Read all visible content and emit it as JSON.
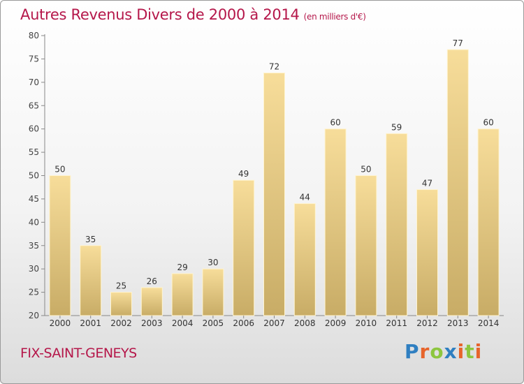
{
  "header": {
    "title": "Autres Revenus Divers de 2000 à 2014",
    "subtitle": "(en milliers d'€)"
  },
  "footer": {
    "commune": "FIX-SAINT-GENEYS",
    "logo_text": "Proxiti",
    "logo_letters": [
      {
        "char": "P",
        "color": "#2f7fc1"
      },
      {
        "char": "r",
        "color": "#e7642b"
      },
      {
        "char": "o",
        "color": "#8dc63f"
      },
      {
        "char": "x",
        "color": "#2f7fc1"
      },
      {
        "char": "i",
        "color": "#e7642b"
      },
      {
        "char": "t",
        "color": "#8dc63f"
      },
      {
        "char": "i",
        "color": "#e7642b"
      }
    ]
  },
  "chart_data": {
    "type": "bar",
    "title": "Autres Revenus Divers de 2000 à 2014",
    "subtitle": "(en milliers d'€)",
    "categories": [
      "2000",
      "2001",
      "2002",
      "2003",
      "2004",
      "2005",
      "2006",
      "2007",
      "2008",
      "2009",
      "2010",
      "2011",
      "2012",
      "2013",
      "2014"
    ],
    "values": [
      50,
      35,
      25,
      26,
      29,
      30,
      49,
      72,
      44,
      60,
      50,
      59,
      47,
      77,
      60
    ],
    "ylim": [
      20,
      80
    ],
    "yticks": [
      20,
      25,
      30,
      35,
      40,
      45,
      50,
      55,
      60,
      65,
      70,
      75,
      80
    ],
    "grid": false,
    "bar_color_top": "#f7dd9a",
    "bar_color_bottom": "#c8ac66",
    "bar_edge": "#fff4cf"
  }
}
